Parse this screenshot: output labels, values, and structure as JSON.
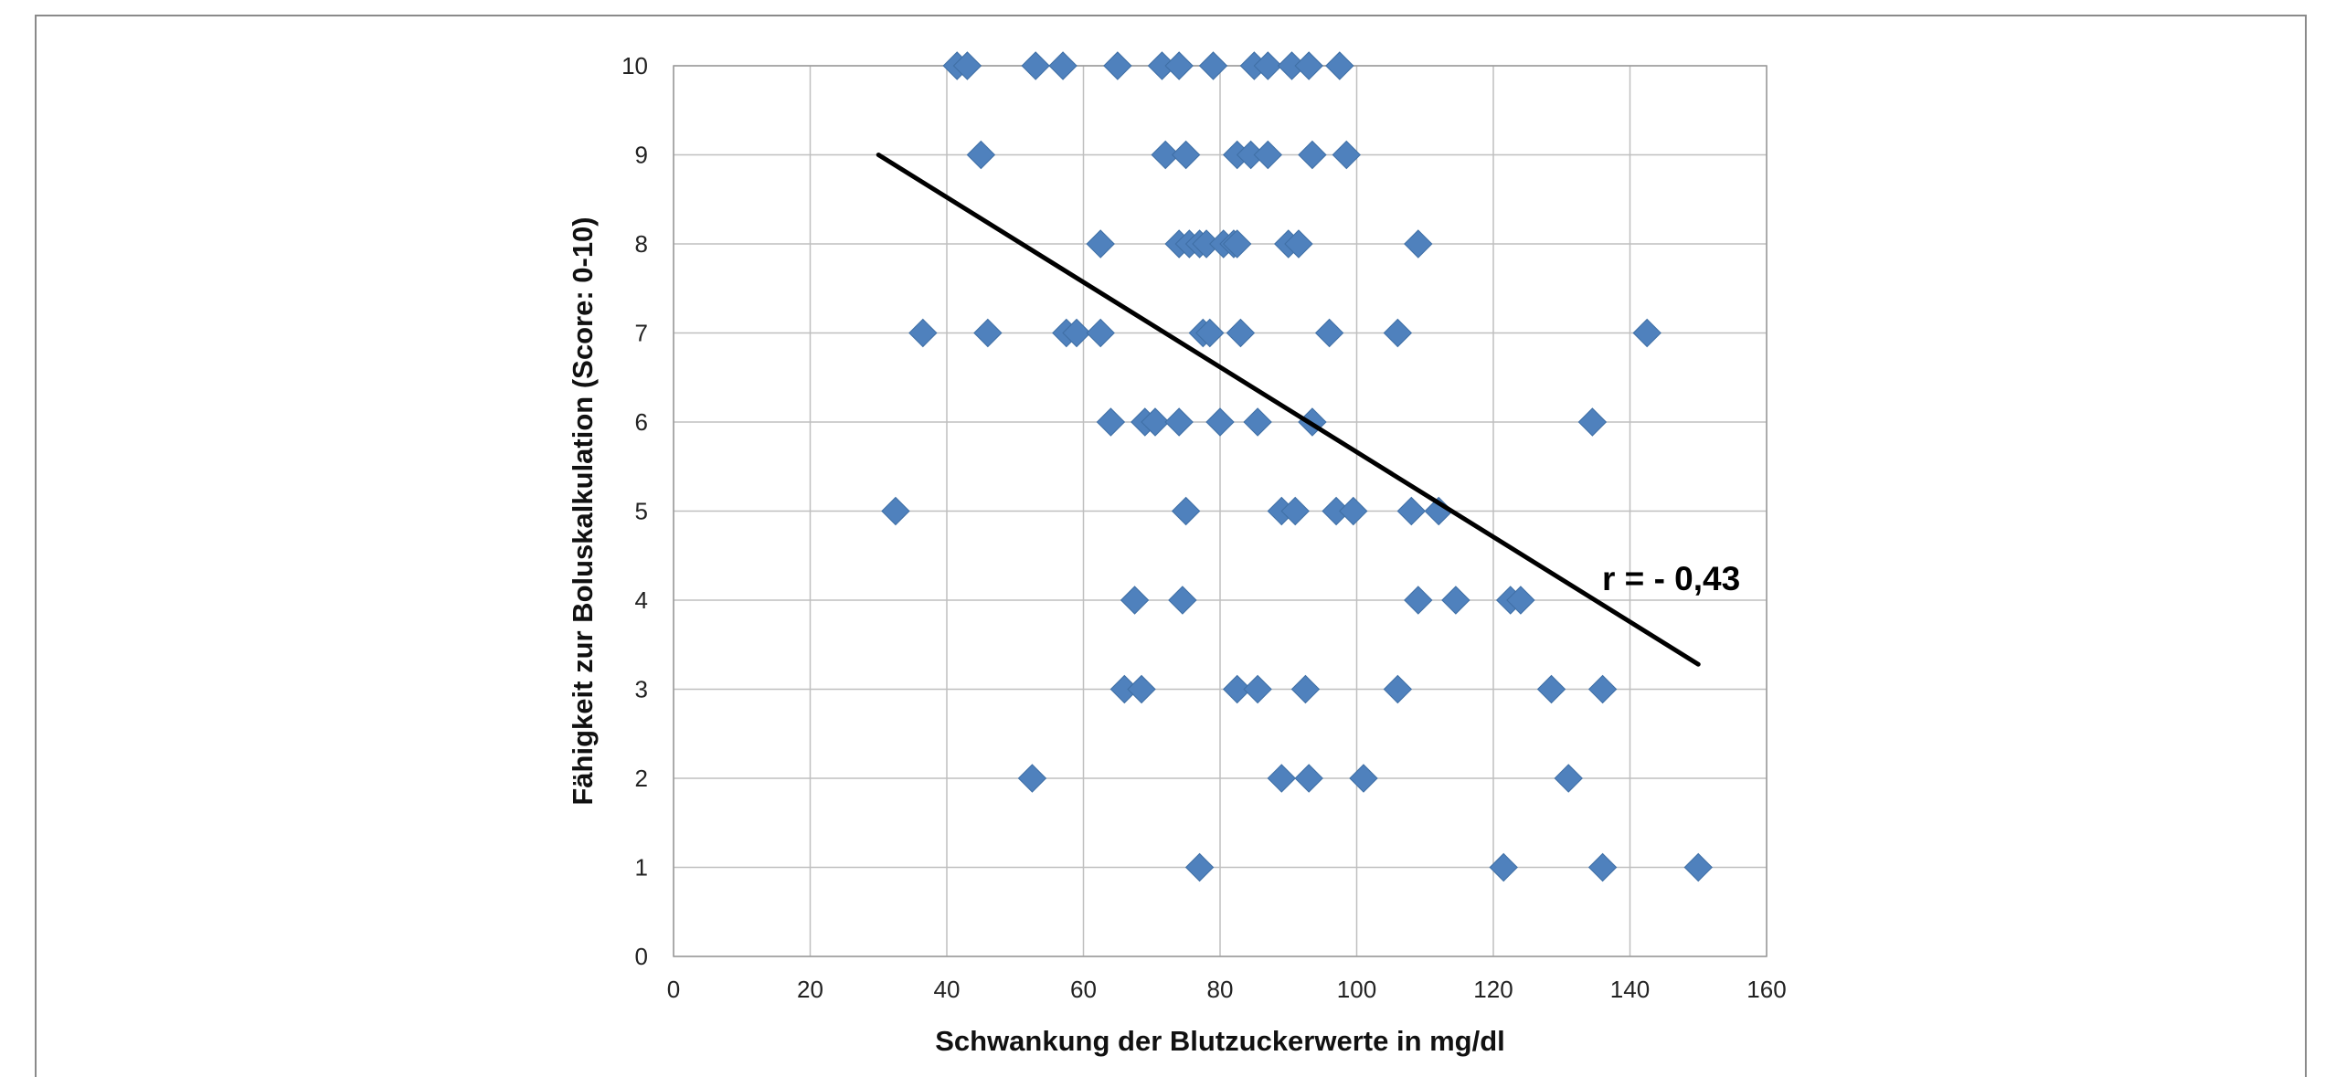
{
  "chart_data": {
    "type": "scatter",
    "title": "",
    "xlabel": "Schwankung der Blutzuckerwerte in mg/dl",
    "ylabel": "Fähigkeit zur Boluskalkulation (Score: 0-10)",
    "xlim": [
      0,
      160
    ],
    "ylim": [
      0,
      10
    ],
    "xticks": [
      "0",
      "20",
      "40",
      "60",
      "80",
      "100",
      "120",
      "140",
      "160"
    ],
    "yticks": [
      "0",
      "1",
      "2",
      "3",
      "4",
      "5",
      "6",
      "7",
      "8",
      "9",
      "10"
    ],
    "grid": true,
    "legend": "none",
    "marker": "diamond",
    "marker_color": "#4f81bd",
    "trendline": {
      "x": [
        30,
        150
      ],
      "y": [
        9.0,
        3.28
      ],
      "color": "#000000"
    },
    "annotation": "r = - 0,43",
    "points": [
      {
        "x": 41.5,
        "y": 10
      },
      {
        "x": 43,
        "y": 10
      },
      {
        "x": 53,
        "y": 10
      },
      {
        "x": 57,
        "y": 10
      },
      {
        "x": 65,
        "y": 10
      },
      {
        "x": 71.5,
        "y": 10
      },
      {
        "x": 74,
        "y": 10
      },
      {
        "x": 79,
        "y": 10
      },
      {
        "x": 85,
        "y": 10
      },
      {
        "x": 87,
        "y": 10
      },
      {
        "x": 90.5,
        "y": 10
      },
      {
        "x": 93,
        "y": 10
      },
      {
        "x": 97.5,
        "y": 10
      },
      {
        "x": 45,
        "y": 9
      },
      {
        "x": 72,
        "y": 9
      },
      {
        "x": 75,
        "y": 9
      },
      {
        "x": 82.5,
        "y": 9
      },
      {
        "x": 84.5,
        "y": 9
      },
      {
        "x": 87,
        "y": 9
      },
      {
        "x": 93.5,
        "y": 9
      },
      {
        "x": 98.5,
        "y": 9
      },
      {
        "x": 62.5,
        "y": 8
      },
      {
        "x": 74,
        "y": 8
      },
      {
        "x": 75.5,
        "y": 8
      },
      {
        "x": 77,
        "y": 8
      },
      {
        "x": 78,
        "y": 8
      },
      {
        "x": 80.5,
        "y": 8
      },
      {
        "x": 82,
        "y": 8
      },
      {
        "x": 82.5,
        "y": 8
      },
      {
        "x": 90,
        "y": 8
      },
      {
        "x": 91.5,
        "y": 8
      },
      {
        "x": 109,
        "y": 8
      },
      {
        "x": 36.5,
        "y": 7
      },
      {
        "x": 46,
        "y": 7
      },
      {
        "x": 57.5,
        "y": 7
      },
      {
        "x": 59,
        "y": 7
      },
      {
        "x": 62.5,
        "y": 7
      },
      {
        "x": 77.5,
        "y": 7
      },
      {
        "x": 78.5,
        "y": 7
      },
      {
        "x": 83,
        "y": 7
      },
      {
        "x": 96,
        "y": 7
      },
      {
        "x": 106,
        "y": 7
      },
      {
        "x": 142.5,
        "y": 7
      },
      {
        "x": 64,
        "y": 6
      },
      {
        "x": 69,
        "y": 6
      },
      {
        "x": 70.5,
        "y": 6
      },
      {
        "x": 74,
        "y": 6
      },
      {
        "x": 80,
        "y": 6
      },
      {
        "x": 85.5,
        "y": 6
      },
      {
        "x": 93.5,
        "y": 6
      },
      {
        "x": 134.5,
        "y": 6
      },
      {
        "x": 32.5,
        "y": 5
      },
      {
        "x": 75,
        "y": 5
      },
      {
        "x": 89,
        "y": 5
      },
      {
        "x": 91,
        "y": 5
      },
      {
        "x": 97,
        "y": 5
      },
      {
        "x": 99.5,
        "y": 5
      },
      {
        "x": 108,
        "y": 5
      },
      {
        "x": 112,
        "y": 5
      },
      {
        "x": 67.5,
        "y": 4
      },
      {
        "x": 74.5,
        "y": 4
      },
      {
        "x": 109,
        "y": 4
      },
      {
        "x": 114.5,
        "y": 4
      },
      {
        "x": 122.5,
        "y": 4
      },
      {
        "x": 124,
        "y": 4
      },
      {
        "x": 66,
        "y": 3
      },
      {
        "x": 68.5,
        "y": 3
      },
      {
        "x": 82.5,
        "y": 3
      },
      {
        "x": 85.5,
        "y": 3
      },
      {
        "x": 92.5,
        "y": 3
      },
      {
        "x": 106,
        "y": 3
      },
      {
        "x": 128.5,
        "y": 3
      },
      {
        "x": 136,
        "y": 3
      },
      {
        "x": 52.5,
        "y": 2
      },
      {
        "x": 89,
        "y": 2
      },
      {
        "x": 93,
        "y": 2
      },
      {
        "x": 101,
        "y": 2
      },
      {
        "x": 131,
        "y": 2
      },
      {
        "x": 77,
        "y": 1
      },
      {
        "x": 121.5,
        "y": 1
      },
      {
        "x": 136,
        "y": 1
      },
      {
        "x": 150,
        "y": 1
      }
    ]
  }
}
